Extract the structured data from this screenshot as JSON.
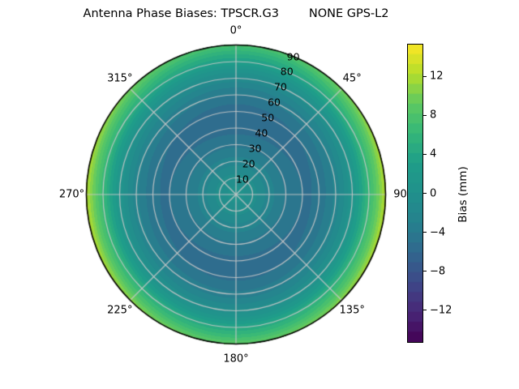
{
  "title": "Antenna Phase Biases: TPSCR.G3        NONE GPS-L2",
  "colorbar": {
    "label": "Bias (mm)",
    "tick_labels": [
      "12",
      "8",
      "4",
      "0",
      "−4",
      "−8",
      "−12"
    ],
    "tick_values": [
      12,
      8,
      4,
      0,
      -4,
      -8,
      -12
    ],
    "vmin": -15.25,
    "vmax": 15.25,
    "segments": 30
  },
  "chart_data": {
    "type": "heatmap",
    "projection": "polar",
    "title": "Antenna Phase Biases: TPSCR.G3        NONE GPS-L2",
    "antenna": "TPSCR.G3",
    "radome": "NONE",
    "signal": "GPS-L2",
    "value_label": "Bias (mm)",
    "units": "mm",
    "colormap": "viridis",
    "viridis_stops": [
      [
        0.0,
        "#440154"
      ],
      [
        0.1,
        "#482878"
      ],
      [
        0.2,
        "#3e4989"
      ],
      [
        0.3,
        "#31688e"
      ],
      [
        0.4,
        "#26828e"
      ],
      [
        0.5,
        "#21918c"
      ],
      [
        0.6,
        "#1f9e89"
      ],
      [
        0.7,
        "#35b779"
      ],
      [
        0.8,
        "#5ec962"
      ],
      [
        0.9,
        "#b5de2b"
      ],
      [
        1.0,
        "#fde725"
      ]
    ],
    "vmin": -15.25,
    "vmax": 15.25,
    "level_step_mm": 1.0,
    "radial_axis": {
      "coordinate": "zenith_angle_deg",
      "min": 0,
      "max": 90,
      "tick_labels": [
        "10",
        "20",
        "30",
        "40",
        "50",
        "60",
        "70",
        "80",
        "90"
      ],
      "tick_values": [
        10,
        20,
        30,
        40,
        50,
        60,
        70,
        80,
        90
      ],
      "label_ray_azimuth_deg": 22.5
    },
    "angular_axis": {
      "coordinate": "azimuth_deg",
      "zero_location": "N",
      "direction": "clockwise",
      "tick_labels": [
        "0°",
        "45°",
        "90",
        "135°",
        "180°",
        "225°",
        "270°",
        "315°"
      ],
      "tick_values": [
        0,
        45,
        90,
        135,
        180,
        225,
        270,
        315
      ]
    },
    "radial_profile": {
      "zenith_deg": [
        0,
        10,
        20,
        30,
        40,
        45,
        50,
        55,
        60,
        65,
        70,
        75,
        80,
        85,
        90
      ],
      "bias_mm": [
        0.5,
        -0.5,
        -2.5,
        -4.2,
        -5.2,
        -5.3,
        -5.0,
        -4.3,
        -3.2,
        -1.8,
        0.0,
        2.2,
        5.0,
        7.5,
        10.4
      ]
    },
    "azimuth_modulation": {
      "cos2_amplitude_mm": 2.05,
      "cos2_phase_deg": 90,
      "cos1_amplitude_mm": 0.7,
      "cos1_phase_deg": 180,
      "radial_power": 3
    },
    "grid": true,
    "grid_color": "#c8c8c8",
    "outline_color": "#000000",
    "legend": "colorbar-right"
  }
}
